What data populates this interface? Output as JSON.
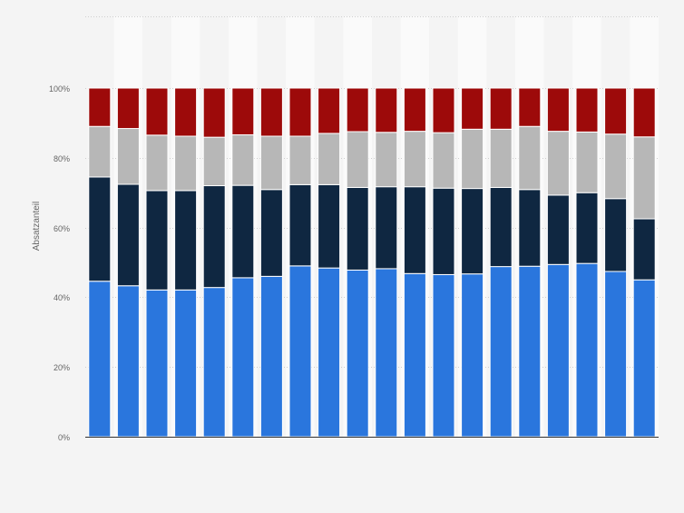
{
  "chart_data": {
    "type": "bar",
    "stacked": true,
    "normalized": true,
    "ylabel": "Absatzanteil",
    "xlabel": "",
    "ylim": [
      0,
      100
    ],
    "yticks": [
      "0%",
      "20%",
      "40%",
      "60%",
      "80%",
      "100%"
    ],
    "categories": [
      "",
      "",
      "",
      "",
      "",
      "",
      "",
      "",
      "",
      "",
      "",
      "",
      "",
      "",
      "",
      "",
      "",
      "",
      "",
      ""
    ],
    "grid": "horizontal dotted",
    "legend": "none",
    "series": [
      {
        "color": "#2a76dd",
        "values": [
          44.6,
          43.3,
          42.1,
          42.1,
          42.8,
          45.6,
          46.0,
          49.0,
          48.4,
          47.8,
          48.2,
          46.8,
          46.5,
          46.7,
          48.8,
          48.9,
          49.4,
          49.7,
          47.4,
          45.0
        ]
      },
      {
        "color": "#0f2741",
        "values": [
          29.9,
          29.1,
          28.5,
          28.5,
          29.2,
          26.5,
          24.9,
          23.3,
          23.9,
          23.7,
          23.5,
          24.9,
          24.8,
          24.5,
          22.7,
          22.0,
          19.9,
          20.3,
          20.9,
          17.5
        ]
      },
      {
        "color": "#b7b7b7",
        "values": [
          14.5,
          16.0,
          15.9,
          15.6,
          13.9,
          14.5,
          15.3,
          13.9,
          14.7,
          16.0,
          15.6,
          15.9,
          15.9,
          17.0,
          16.7,
          18.1,
          18.3,
          17.4,
          18.5,
          23.5
        ]
      },
      {
        "color": "#9d0a0a",
        "values": [
          11.0,
          11.6,
          13.5,
          13.8,
          14.1,
          13.4,
          13.8,
          13.8,
          13.0,
          12.5,
          12.7,
          12.4,
          12.8,
          11.8,
          11.8,
          11.0,
          12.4,
          12.6,
          13.2,
          14.0
        ]
      }
    ]
  }
}
